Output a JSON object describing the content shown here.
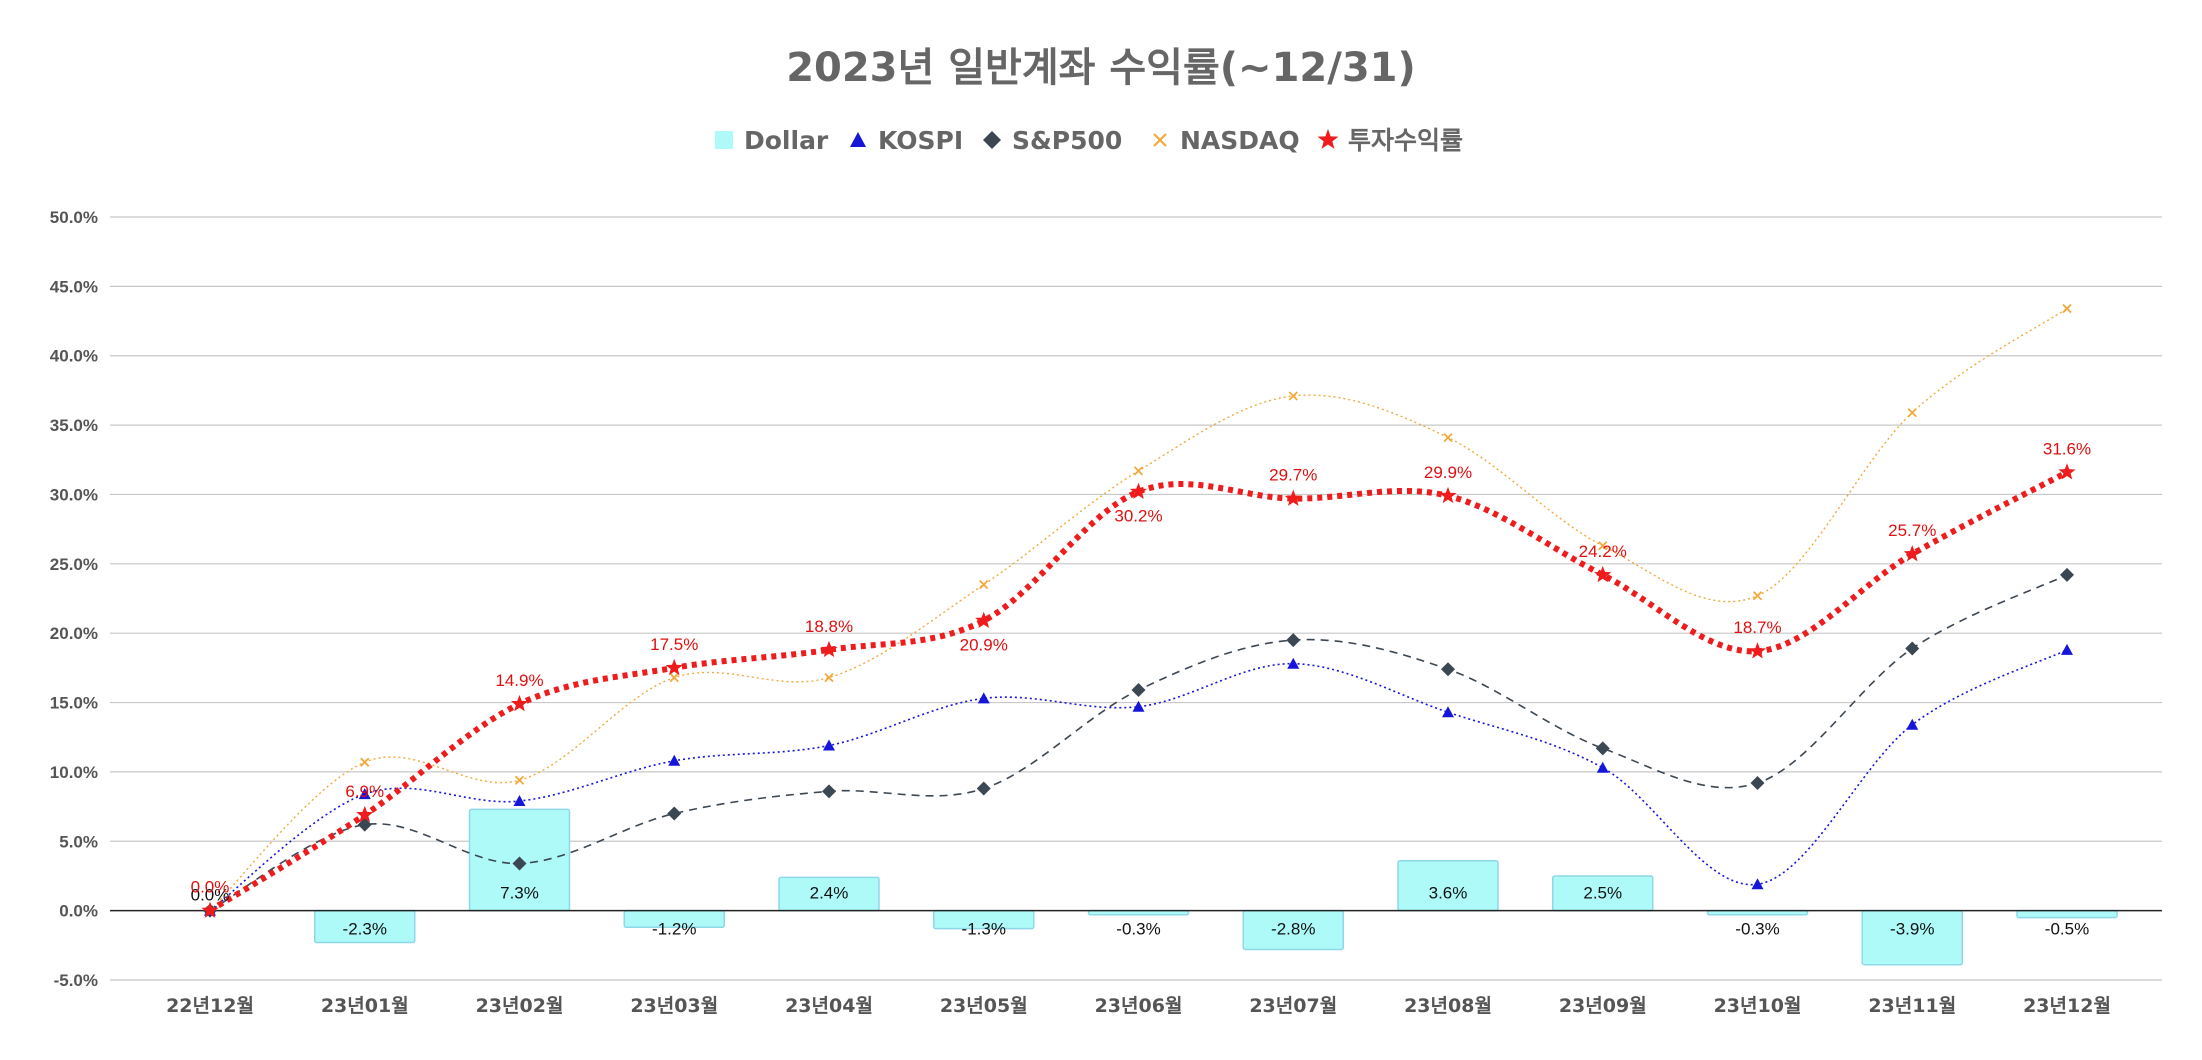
{
  "chart_data": {
    "type": "bar+line",
    "title": "2023년 일반계좌 수익률(~12/31)",
    "categories": [
      "22년12월",
      "23년01월",
      "23년02월",
      "23년03월",
      "23년04월",
      "23년05월",
      "23년06월",
      "23년07월",
      "23년08월",
      "23년09월",
      "23년10월",
      "23년11월",
      "23년12월"
    ],
    "ylim": [
      -5,
      50
    ],
    "yticks": [
      -5,
      0,
      5,
      10,
      15,
      20,
      25,
      30,
      35,
      40,
      45,
      50
    ],
    "ytick_labels": [
      "-5.0%",
      "0.0%",
      "5.0%",
      "10.0%",
      "15.0%",
      "20.0%",
      "25.0%",
      "30.0%",
      "35.0%",
      "40.0%",
      "45.0%",
      "50.0%"
    ],
    "grid": true,
    "legend_position": "top",
    "series": [
      {
        "name": "Dollar",
        "kind": "bar",
        "color": "#adfaf8",
        "edge_color": "#8ed8e8",
        "values": [
          0.0,
          -2.3,
          7.3,
          -1.2,
          2.4,
          -1.3,
          -0.3,
          -2.8,
          3.6,
          2.5,
          -0.3,
          -3.9,
          -0.5
        ],
        "labels": [
          "0.0%",
          "-2.3%",
          "7.3%",
          "-1.2%",
          "2.4%",
          "-1.3%",
          "-0.3%",
          "-2.8%",
          "3.6%",
          "2.5%",
          "-0.3%",
          "-3.9%",
          "-0.5%"
        ]
      },
      {
        "name": "KOSPI",
        "kind": "line",
        "marker": "triangle",
        "color": "#1616d8",
        "values": [
          0.0,
          8.4,
          7.9,
          10.8,
          11.9,
          15.3,
          14.7,
          17.8,
          14.3,
          10.3,
          1.9,
          13.4,
          18.8
        ]
      },
      {
        "name": "S&P500",
        "kind": "line",
        "marker": "diamond",
        "color": "#3b4752",
        "values": [
          0.0,
          6.2,
          3.4,
          7.0,
          8.6,
          8.8,
          15.9,
          19.5,
          17.4,
          11.7,
          9.2,
          18.9,
          24.2
        ]
      },
      {
        "name": "NASDAQ",
        "kind": "line",
        "marker": "x",
        "color": "#f2a93b",
        "values": [
          0.0,
          10.7,
          9.4,
          16.8,
          16.8,
          23.5,
          31.7,
          37.1,
          34.1,
          26.3,
          22.7,
          35.9,
          43.4
        ]
      },
      {
        "name": "투자수익률",
        "kind": "line",
        "marker": "star",
        "color": "#ee1c1c",
        "values": [
          0.0,
          6.9,
          14.9,
          17.5,
          18.8,
          20.9,
          30.2,
          29.7,
          29.9,
          24.2,
          18.7,
          25.7,
          31.6
        ],
        "labels": [
          "0.0%",
          "6.9%",
          "14.9%",
          "17.5%",
          "18.8%",
          "20.9%",
          "30.2%",
          "29.7%",
          "29.9%",
          "24.2%",
          "18.7%",
          "25.7%",
          "31.6%"
        ]
      }
    ]
  }
}
